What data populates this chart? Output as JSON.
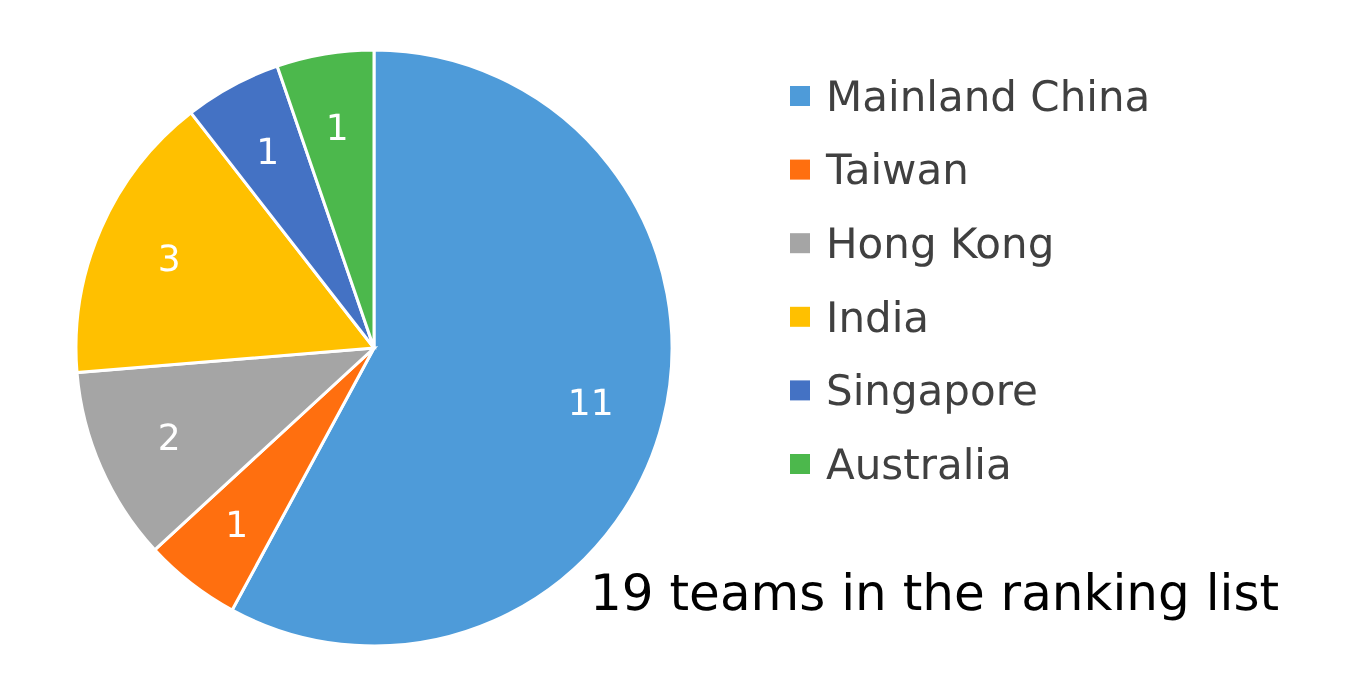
{
  "chart_data": {
    "type": "pie",
    "categories": [
      "Mainland China",
      "Taiwan",
      "Hong Kong",
      "India",
      "Singapore",
      "Australia"
    ],
    "values": [
      11,
      1,
      2,
      3,
      1,
      1
    ],
    "colors": [
      "#4e9bd9",
      "#ff6f0f",
      "#a5a5a5",
      "#ffc000",
      "#4472c4",
      "#4cb84c"
    ],
    "data_labels": true,
    "legend": "right",
    "annotations": [
      "19 teams in the ranking list"
    ]
  }
}
